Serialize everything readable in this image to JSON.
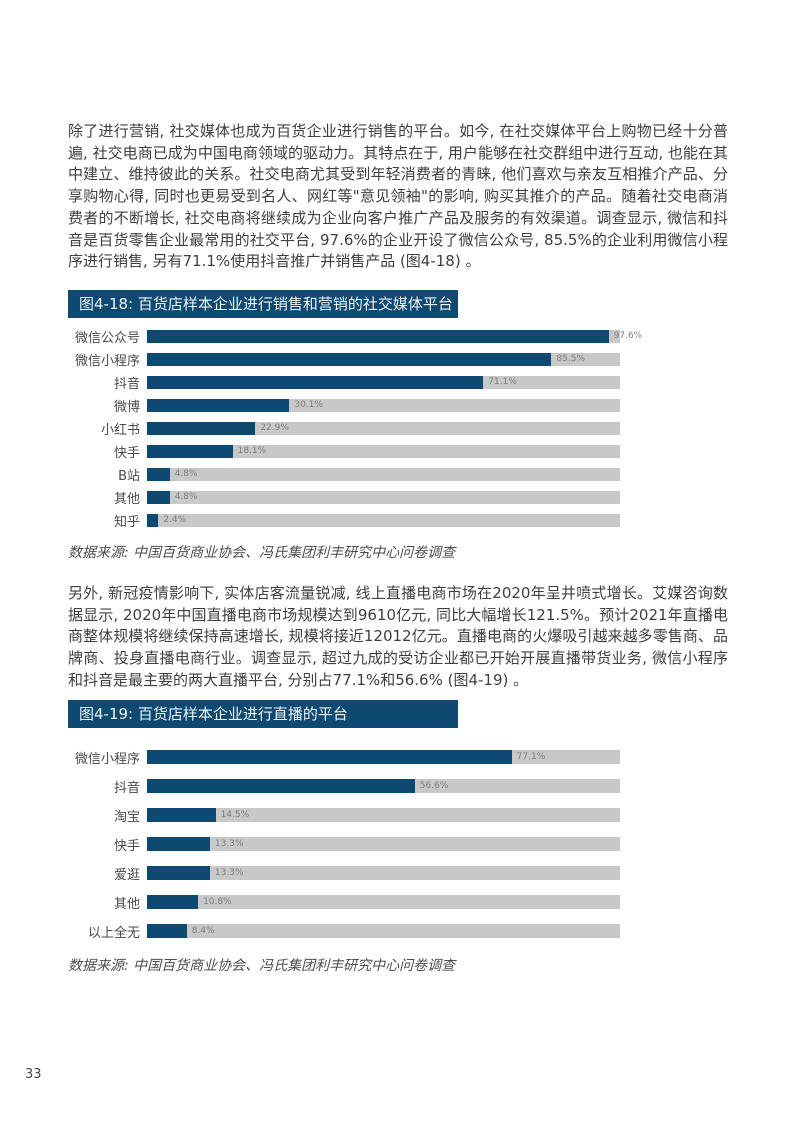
{
  "page": {
    "number": "33"
  },
  "paragraphs": {
    "p1": "除了进行营销, 社交媒体也成为百货企业进行销售的平台。如今, 在社交媒体平台上购物已经十分普遍, 社交电商已成为中国电商领域的驱动力。其特点在于, 用户能够在社交群组中进行互动, 也能在其中建立、维持彼此的关系。社交电商尤其受到年轻消费者的青睐, 他们喜欢与亲友互相推介产品、分享购物心得, 同时也更易受到名人、网红等\"意见领袖\"的影响, 购买其推介的产品。随着社交电商消费者的不断增长, 社交电商将继续成为企业向客户推广产品及服务的有效渠道。调查显示, 微信和抖音是百货零售企业最常用的社交平台, 97.6%的企业开设了微信公众号, 85.5%的企业利用微信小程序进行销售, 另有71.1%使用抖音推广并销售产品 (图4-18) 。",
    "p2": "另外, 新冠疫情影响下, 实体店客流量锐减, 线上直播电商市场在2020年呈井喷式增长。艾媒咨询数据显示, 2020年中国直播电商市场规模达到9610亿元, 同比大幅增长121.5%。预计2021年直播电商整体规模将继续保持高速增长, 规模将接近12012亿元。直播电商的火爆吸引越来越多零售商、品牌商、投身直播电商行业。调查显示, 超过九成的受访企业都已开始开展直播带货业务, 微信小程序和抖音是最主要的两大直播平台, 分别占77.1%和56.6% (图4-19) 。"
  },
  "colors": {
    "accent_navy": "#0e4971",
    "track_gray": "#c8c8c8",
    "title_text": "#eef5fb"
  },
  "chart_data": [
    {
      "type": "bar",
      "orientation": "horizontal",
      "title": "图4-18: 百货店样本企业进行销售和营销的社交媒体平台",
      "categories": [
        "微信公众号",
        "微信小程序",
        "抖音",
        "微博",
        "小红书",
        "快手",
        "B站",
        "其他",
        "知乎"
      ],
      "values": [
        97.6,
        85.5,
        71.1,
        30.1,
        22.9,
        18.1,
        4.8,
        4.8,
        2.4
      ],
      "value_labels": [
        "97.6%",
        "85.5%",
        "71.1%",
        "30.1%",
        "22.9%",
        "18.1%",
        "4.8%",
        "4.8%",
        "2.4%"
      ],
      "xlim": [
        0,
        100
      ],
      "grid": false,
      "legend": false,
      "bar_color": "#0e4971",
      "track_color": "#c8c8c8",
      "source": "数据来源: 中国百货商业协会、冯氏集团利丰研究中心问卷调查"
    },
    {
      "type": "bar",
      "orientation": "horizontal",
      "title": "图4-19: 百货店样本企业进行直播的平台",
      "categories": [
        "微信小程序",
        "抖音",
        "淘宝",
        "快手",
        "爱逛",
        "其他",
        "以上全无"
      ],
      "values": [
        77.1,
        56.6,
        14.5,
        13.3,
        13.3,
        10.8,
        8.4
      ],
      "value_labels": [
        "77.1%",
        "56.6%",
        "14.5%",
        "13.3%",
        "13.3%",
        "10.8%",
        "8.4%"
      ],
      "xlim": [
        0,
        100
      ],
      "grid": false,
      "legend": false,
      "bar_color": "#0e4971",
      "track_color": "#c8c8c8",
      "source": "数据来源: 中国百货商业协会、冯氏集团利丰研究中心问卷调查"
    }
  ]
}
